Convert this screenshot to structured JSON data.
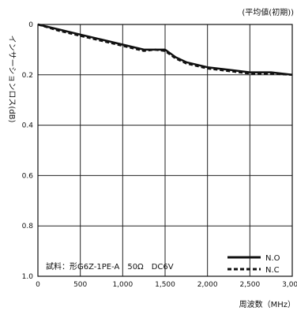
{
  "chart_data": {
    "type": "line",
    "title": "",
    "subtitle": "(平均値(初期))",
    "xlabel": "周波数（MHz）",
    "ylabel": "インサーションロス(dB)",
    "xlim": [
      0,
      3000
    ],
    "ylim": [
      0,
      1.0
    ],
    "y_inverted": true,
    "x_ticks": [
      0,
      500,
      1000,
      1500,
      2000,
      2500,
      3000
    ],
    "x_tick_labels": [
      "0",
      "500",
      "1,000",
      "1,500",
      "2,000",
      "2,500",
      "3,000"
    ],
    "y_ticks": [
      0,
      0.2,
      0.4,
      0.6,
      0.8,
      1.0
    ],
    "y_tick_labels": [
      "0",
      "0.2",
      "0.4",
      "0.6",
      "0.8",
      "1.0"
    ],
    "grid": true,
    "legend_position": "bottom-right",
    "annotation": "試料：形G6Z-1PE-A　50Ω　DC6V",
    "series": [
      {
        "name": "N.O",
        "style": "solid",
        "x": [
          0,
          250,
          500,
          750,
          1000,
          1250,
          1375,
          1500,
          1625,
          1750,
          2000,
          2250,
          2500,
          2750,
          3000
        ],
        "y": [
          0.0,
          0.02,
          0.04,
          0.06,
          0.08,
          0.1,
          0.1,
          0.1,
          0.13,
          0.15,
          0.17,
          0.18,
          0.19,
          0.19,
          0.2
        ]
      },
      {
        "name": "N.C",
        "style": "dashed",
        "x": [
          0,
          250,
          500,
          750,
          1000,
          1250,
          1375,
          1500,
          1625,
          1750,
          2000,
          2250,
          2500,
          2750,
          3000
        ],
        "y": [
          0.0,
          0.025,
          0.045,
          0.065,
          0.085,
          0.105,
          0.1,
          0.105,
          0.135,
          0.155,
          0.175,
          0.185,
          0.195,
          0.195,
          0.2
        ]
      }
    ]
  }
}
